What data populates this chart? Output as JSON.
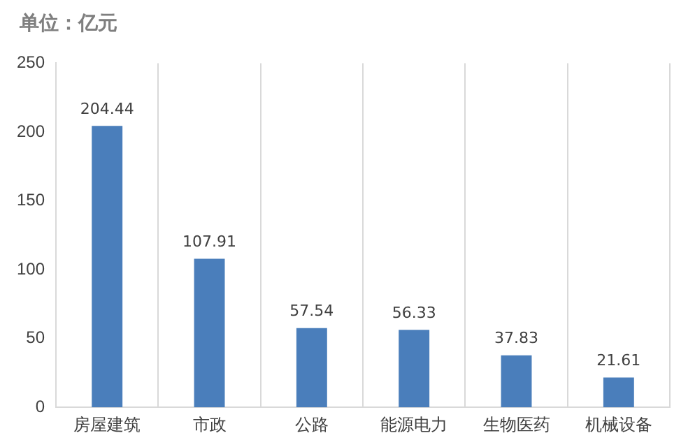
{
  "chart_data": {
    "type": "bar",
    "title": "单位：亿元",
    "categories": [
      "房屋建筑",
      "市政",
      "公路",
      "能源电力",
      "生物医药",
      "机械设备"
    ],
    "values": [
      204.44,
      107.91,
      57.54,
      56.33,
      37.83,
      21.61
    ],
    "color": "#4a7ebb",
    "ylim": [
      0,
      250
    ],
    "yticks": [
      0,
      50,
      100,
      150,
      200,
      250
    ],
    "grid": "x",
    "data_labels": true
  }
}
